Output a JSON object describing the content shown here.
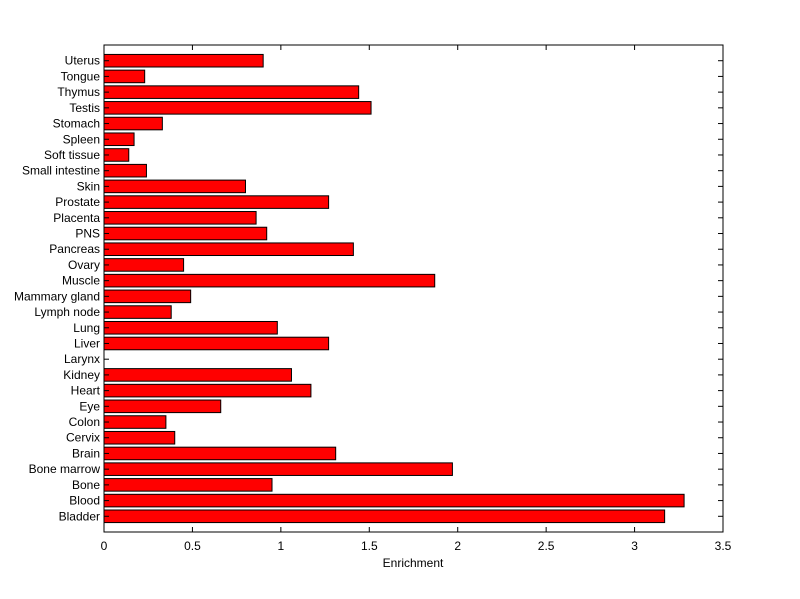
{
  "chart_data": {
    "type": "bar",
    "orientation": "horizontal",
    "title": "",
    "xlabel": "Enrichment",
    "ylabel": "",
    "xlim": [
      0,
      3.5
    ],
    "xticks": [
      0,
      0.5,
      1,
      1.5,
      2,
      2.5,
      3,
      3.5
    ],
    "grid": false,
    "bar_color": "#ff0000",
    "edge_color": "#000000",
    "categories": [
      "Bladder",
      "Blood",
      "Bone",
      "Bone marrow",
      "Brain",
      "Cervix",
      "Colon",
      "Eye",
      "Heart",
      "Kidney",
      "Larynx",
      "Liver",
      "Lung",
      "Lymph node",
      "Mammary gland",
      "Muscle",
      "Ovary",
      "Pancreas",
      "PNS",
      "Placenta",
      "Prostate",
      "Skin",
      "Small intestine",
      "Soft tissue",
      "Spleen",
      "Stomach",
      "Testis",
      "Thymus",
      "Tongue",
      "Uterus"
    ],
    "values": [
      3.17,
      3.28,
      0.95,
      1.97,
      1.31,
      0.4,
      0.35,
      0.66,
      1.17,
      1.06,
      0.0,
      1.27,
      0.98,
      0.38,
      0.49,
      1.87,
      0.45,
      1.41,
      0.92,
      0.86,
      1.27,
      0.8,
      0.24,
      0.14,
      0.17,
      0.33,
      1.51,
      1.44,
      0.23,
      0.9
    ]
  }
}
